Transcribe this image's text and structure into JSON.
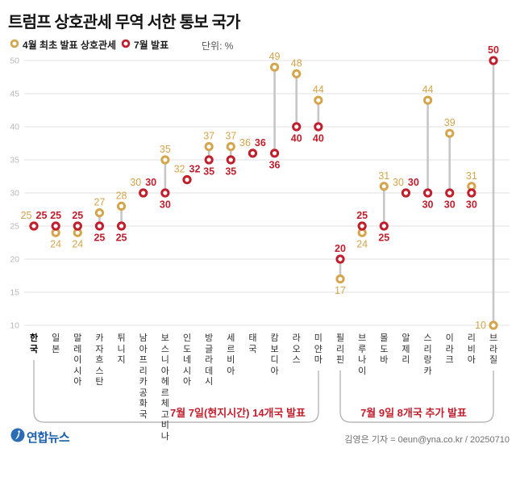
{
  "title": "트럼프 상호관세 무역 서한 통보 국가",
  "legend": {
    "april_label": "4월 최초 발표 상호관세",
    "july_label": "7월 발표",
    "unit_label": "단위: %"
  },
  "colors": {
    "april_gold": "#D4A54C",
    "july_red": "#C01E2D",
    "grid": "#E0E0E0",
    "tick_text": "#B9B9B9",
    "connector": "#C6C6C6",
    "bracket": "#ABABAB",
    "logo_blue": "#1A5FAA"
  },
  "chart_data": {
    "type": "scatter",
    "subtype": "dumbbell",
    "title": "트럼프 상호관세 무역 서한 통보 국가",
    "unit": "%",
    "ylim": [
      10,
      50
    ],
    "yticks": [
      50,
      45,
      40,
      35,
      30,
      25,
      20,
      15,
      10
    ],
    "grid": true,
    "legend_position": "top-left",
    "series": [
      {
        "name": "4월 최초 발표 상호관세",
        "key": "april",
        "color": "#D4A54C"
      },
      {
        "name": "7월 발표",
        "key": "july",
        "color": "#C01E2D"
      }
    ],
    "countries": [
      {
        "name": "한국",
        "april": 25,
        "july": 25,
        "bold": true,
        "group": 1
      },
      {
        "name": "일본",
        "april": 24,
        "july": 25,
        "group": 1
      },
      {
        "name": "말레이시아",
        "april": 24,
        "july": 25,
        "group": 1
      },
      {
        "name": "카자흐스탄",
        "april": 27,
        "july": 25,
        "group": 1
      },
      {
        "name": "튀니지",
        "april": 28,
        "july": 25,
        "group": 1
      },
      {
        "name": "남아프리카공화국",
        "april": 30,
        "july": 30,
        "group": 1
      },
      {
        "name": "보스니아헤르체고비나",
        "april": 35,
        "july": 30,
        "group": 1
      },
      {
        "name": "인도네시아",
        "april": 32,
        "july": 32,
        "group": 1
      },
      {
        "name": "방글라데시",
        "april": 37,
        "july": 35,
        "group": 1
      },
      {
        "name": "세르비아",
        "april": 37,
        "july": 35,
        "group": 1
      },
      {
        "name": "태국",
        "april": 36,
        "july": 36,
        "group": 1
      },
      {
        "name": "캄보디아",
        "april": 49,
        "july": 36,
        "group": 1
      },
      {
        "name": "라오스",
        "april": 48,
        "july": 40,
        "group": 1
      },
      {
        "name": "미얀마",
        "april": 44,
        "july": 40,
        "group": 1
      },
      {
        "name": "필리핀",
        "april": 17,
        "july": 20,
        "group": 2
      },
      {
        "name": "브루나이",
        "april": 24,
        "july": 25,
        "group": 2
      },
      {
        "name": "몰도바",
        "april": 31,
        "july": 25,
        "group": 2
      },
      {
        "name": "알제리",
        "april": 30,
        "july": 30,
        "group": 2
      },
      {
        "name": "스리랑카",
        "april": 44,
        "july": 30,
        "group": 2
      },
      {
        "name": "이라크",
        "april": 39,
        "july": 30,
        "group": 2
      },
      {
        "name": "리비아",
        "april": 31,
        "july": 30,
        "group": 2
      },
      {
        "name": "브라질",
        "april": 10,
        "july": 50,
        "group": 2
      }
    ]
  },
  "annotations": {
    "group1_label": "7월 7일(현지시간) 14개국 발표",
    "group2_label": "7월 9일 8개국 추가 발표"
  },
  "footer": {
    "logo_text": "연합뉴스",
    "credit": "김영은 기자 = 0eun@yna.co.kr / 20250710"
  }
}
